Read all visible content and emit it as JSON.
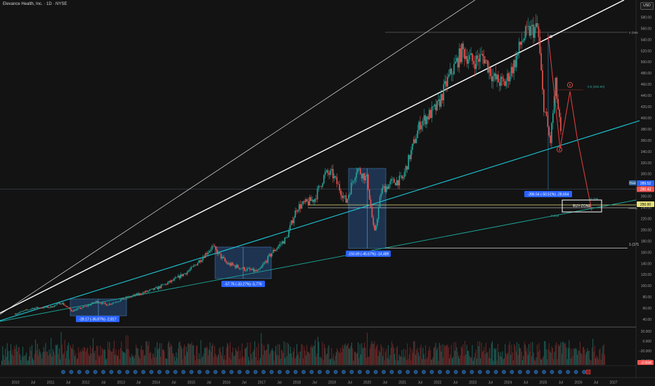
{
  "header": {
    "symbol_title": "Elevance Health, Inc. · 1D · NYSE",
    "currency_button": "USD"
  },
  "price_axis": {
    "ticks": [
      "600.00",
      "580.00",
      "560.00",
      "540.00",
      "520.00",
      "500.00",
      "480.00",
      "460.00",
      "440.00",
      "420.00",
      "400.00",
      "380.00",
      "360.00",
      "340.00",
      "320.00",
      "300.00",
      "280.00",
      "260.00",
      "240.00",
      "220.00",
      "200.00",
      "180.00",
      "160.00",
      "140.00",
      "120.00",
      "100.00",
      "80.00",
      "60.00",
      "40.00"
    ],
    "badges": {
      "symbol_tag": "Pivot",
      "last_price": "289.52",
      "second_price": "280.43",
      "buy_zone_price": "250.00",
      "weekly_label": "Weekly"
    }
  },
  "indicator_axis": {
    "ticks": [
      "20.000",
      "0.000",
      "-20.000",
      "-40.000"
    ],
    "badge": "-3.56M"
  },
  "time_axis": {
    "labels": [
      "2010",
      "Jul",
      "2011",
      "Jul",
      "2012",
      "Jul",
      "2013",
      "Jul",
      "2014",
      "Jul",
      "2015",
      "Jul",
      "2016",
      "Jul",
      "2017",
      "Jul",
      "2018",
      "Jul",
      "2019",
      "Jul",
      "2020",
      "Jul",
      "2021",
      "Jul",
      "2022",
      "Jul",
      "2023",
      "Jul",
      "2024",
      "Jul",
      "2025",
      "Jul",
      "2026",
      "Jul",
      "2027"
    ]
  },
  "annotations": {
    "measure_2011": "-28.17 (-36.87%) -2,817",
    "measure_2016": "-57.76 (-33.27%) -5,776",
    "measure_2020": "-150.69 (-45.67%) -14,489",
    "measure_2024": "-286.54 (-50.51%) -28,654",
    "fib_top": "0 (566",
    "fib_half": "0.5 (462.60)",
    "fib_786": "0.786",
    "fib_618": "0.618",
    "fib_1": "1 (171",
    "wave_b": "b",
    "wave_a": "a",
    "buy_zone": "BUY-ZONE"
  },
  "chart_data": {
    "type": "line",
    "title": "Elevance Health, Inc. · 1D · NYSE",
    "y_unit": "USD",
    "ylim": [
      30,
      610
    ],
    "grid": false,
    "x": [
      2010.0,
      2010.5,
      2011.0,
      2011.3,
      2011.6,
      2012.0,
      2012.3,
      2012.6,
      2013.0,
      2013.5,
      2014.0,
      2014.5,
      2015.0,
      2015.3,
      2015.6,
      2016.0,
      2016.5,
      2016.9,
      2017.3,
      2017.7,
      2018.0,
      2018.5,
      2018.8,
      2019.0,
      2019.4,
      2019.7,
      2020.0,
      2020.2,
      2020.4,
      2020.7,
      2021.0,
      2021.5,
      2022.0,
      2022.3,
      2022.7,
      2023.0,
      2023.3,
      2023.6,
      2023.9,
      2024.2,
      2024.4,
      2024.6,
      2024.85,
      2025.0,
      2025.2,
      2025.35,
      2025.5
    ],
    "series": [
      {
        "values": [
          50,
          60,
          62,
          70,
          55,
          63,
          72,
          66,
          75,
          85,
          95,
          110,
          130,
          150,
          170,
          140,
          130,
          125,
          160,
          185,
          240,
          255,
          300,
          300,
          250,
          310,
          290,
          190,
          270,
          285,
          290,
          390,
          420,
          470,
          520,
          500,
          510,
          470,
          460,
          500,
          540,
          555,
          560,
          430,
          355,
          460,
          370
        ]
      }
    ]
  },
  "colors": {
    "background": "#131313",
    "candle_up": "#26a69a",
    "candle_down": "#ef5350",
    "trendline_cyan": "#1ec8d8",
    "measure_box": "#2a5a9a",
    "measure_label": "#2962ff",
    "fib_line": "#888888",
    "buy_zone_line": "#e6e07a"
  }
}
